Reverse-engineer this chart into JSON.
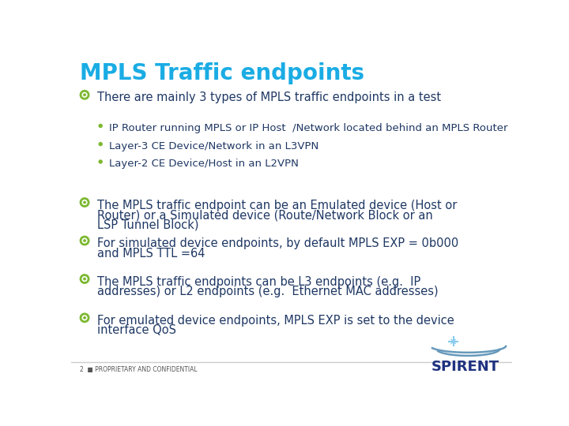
{
  "title": "MPLS Traffic endpoints",
  "title_color": "#1AACE4",
  "background_color": "#FFFFFF",
  "bullet_color_l1": "#7CB82F",
  "bullet_color_l2": "#7CB82F",
  "text_color": "#1F3864",
  "footer_text": "2  ■ PROPRIETARY AND CONFIDENTIAL",
  "footer_color": "#555555",
  "spirent_color": "#1F3280",
  "arc_color": "#6699BB",
  "star_color": "#88CCEE",
  "line_color": "#CCCCCC",
  "bullet_points": [
    {
      "level": 1,
      "lines": [
        "There are mainly 3 types of MPLS traffic endpoints in a test"
      ]
    },
    {
      "level": 2,
      "lines": [
        "IP Router running MPLS or IP Host  /Network located behind an MPLS Router"
      ]
    },
    {
      "level": 2,
      "lines": [
        "Layer-3 CE Device/Network in an L3VPN"
      ]
    },
    {
      "level": 2,
      "lines": [
        "Layer-2 CE Device/Host in an L2VPN"
      ]
    },
    {
      "level": 1,
      "lines": [
        "The MPLS traffic endpoint can be an Emulated device (Host or",
        "Router) or a Simulated device (Route/Network Block or an",
        "LSP Tunnel Block)"
      ]
    },
    {
      "level": 1,
      "lines": [
        "For simulated device endpoints, by default MPLS EXP = 0b000",
        "and MPLS TTL =64"
      ]
    },
    {
      "level": 1,
      "lines": [
        "The MPLS traffic endpoints can be L3 endpoints (e.g.  IP",
        "addresses) or L2 endpoints (e.g.  Ethernet MAC addresses)"
      ]
    },
    {
      "level": 1,
      "lines": [
        "For emulated device endpoints, MPLS EXP is set to the device",
        "interface QoS"
      ]
    }
  ]
}
